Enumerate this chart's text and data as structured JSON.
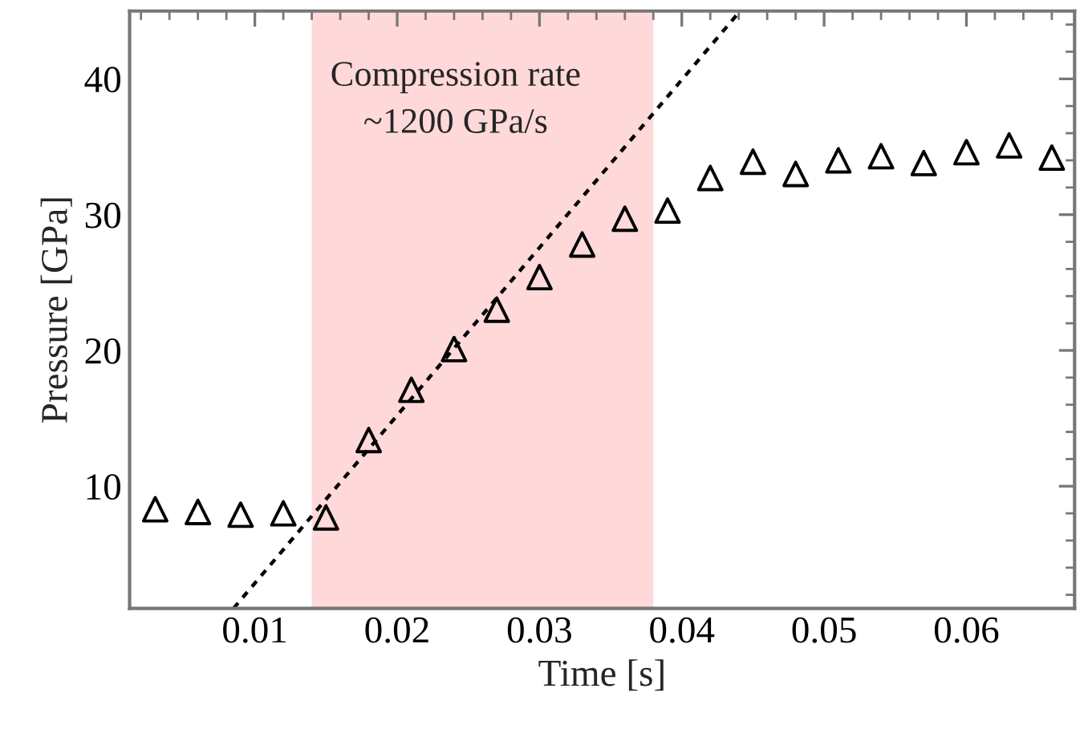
{
  "chart_data": {
    "type": "scatter",
    "xlabel": "Time [s]",
    "ylabel": "Pressure [GPa]",
    "annotations": [
      "Compression rate\n~1200 GPa/s"
    ],
    "xlim": [
      0.0012,
      0.0676
    ],
    "xticks": [
      0.01,
      0.02,
      0.03,
      0.04,
      0.05,
      0.06
    ],
    "ylim": [
      1,
      45
    ],
    "yticks": [
      10,
      20,
      30,
      40
    ],
    "bands": [
      {
        "axis": "x",
        "from": 0.014,
        "to": 0.038,
        "color": "#ffd9d9"
      }
    ],
    "grid": false,
    "legend": false,
    "marker": "triangle",
    "series": [
      {
        "color": "#000000",
        "x": [
          0.003,
          0.006,
          0.009,
          0.012,
          0.015,
          0.018,
          0.021,
          0.024,
          0.027,
          0.03,
          0.033,
          0.036,
          0.039,
          0.042,
          0.045,
          0.048,
          0.051,
          0.054,
          0.057,
          0.06,
          0.063,
          0.066
        ],
        "values": [
          8.3,
          8.1,
          7.9,
          8.0,
          7.7,
          13.4,
          17.1,
          20.1,
          23.0,
          25.4,
          27.8,
          29.7,
          30.3,
          32.7,
          33.9,
          33.0,
          34.0,
          34.3,
          33.8,
          34.6,
          35.1,
          34.2
        ]
      },
      {
        "type": "line",
        "color": "#000000",
        "line_style": "dotted",
        "marker": "none",
        "x": [
          0.0085,
          0.0441
        ],
        "values": [
          1,
          45
        ]
      }
    ]
  }
}
